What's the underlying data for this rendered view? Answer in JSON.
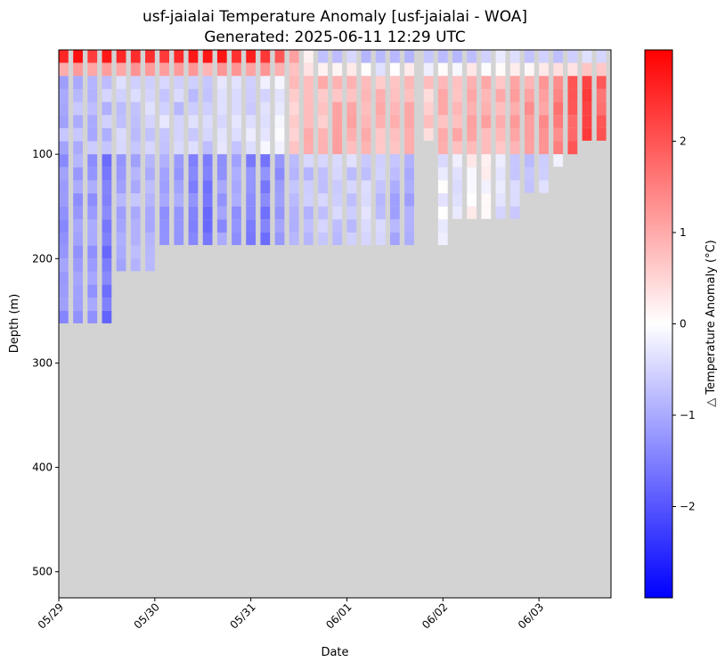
{
  "chart_data": {
    "type": "heatmap",
    "title": "usf-jaialai Temperature Anomaly [usf-jaialai - WOA]",
    "subtitle": "Generated: 2025-06-11 12:29 UTC",
    "xlabel": "Date",
    "ylabel": "Depth (m)",
    "colorbar_label": "△ Temperature Anomaly (°C)",
    "x_ticks": [
      "05/29",
      "05/30",
      "05/31",
      "06/01",
      "06/02",
      "06/03"
    ],
    "x_range_days": [
      0,
      5.75
    ],
    "y_ticks": [
      100,
      200,
      300,
      400,
      500
    ],
    "y_range_m": [
      0,
      525
    ],
    "y_inverted": true,
    "colorbar_ticks": [
      -2,
      -1,
      0,
      1,
      2
    ],
    "colorbar_range": [
      -3,
      3
    ],
    "colormap": "bwr",
    "colormap_colors": [
      "#0000ff",
      "#ffffff",
      "#ff0000"
    ],
    "nodata_color": "#d3d3d3",
    "depth_bin_m": 12.5,
    "column_width_days": 0.1,
    "profile_times_days": [
      0.0,
      0.15,
      0.3,
      0.45,
      0.6,
      0.75,
      0.9,
      1.05,
      1.2,
      1.35,
      1.5,
      1.65,
      1.8,
      1.95,
      2.1,
      2.25,
      2.4,
      2.55,
      2.7,
      2.85,
      3.0,
      3.15,
      3.3,
      3.45,
      3.6,
      3.8,
      3.95,
      4.1,
      4.25,
      4.4,
      4.55,
      4.7,
      4.85,
      5.0,
      5.15,
      5.3,
      5.45,
      5.6
    ],
    "profile_max_depth_m": [
      262,
      262,
      262,
      262,
      212,
      212,
      212,
      187,
      187,
      187,
      187,
      187,
      187,
      187,
      187,
      187,
      187,
      187,
      187,
      187,
      187,
      187,
      187,
      187,
      187,
      87,
      187,
      162,
      162,
      162,
      162,
      162,
      137,
      137,
      112,
      100,
      87,
      87
    ],
    "surface_anomaly_c": [
      2.8,
      2.6,
      2.5,
      2.7,
      2.6,
      2.5,
      2.4,
      2.5,
      2.6,
      2.7,
      2.5,
      2.6,
      2.6,
      2.4,
      2.2,
      2.0,
      0.9,
      0.2,
      -0.8,
      -0.7,
      -0.6,
      -0.9,
      -0.9,
      -0.8,
      -0.7,
      -0.6,
      -0.8,
      -0.6,
      -0.6,
      -0.5,
      -0.5,
      -0.5,
      -0.6,
      -0.5,
      -0.6,
      -0.6,
      -0.6,
      -0.7
    ],
    "thermocline_anomaly_c": [
      -0.9,
      -0.8,
      -0.8,
      -0.7,
      -0.6,
      -0.6,
      -0.6,
      -0.5,
      -0.6,
      -0.6,
      -0.6,
      -0.5,
      -0.5,
      -0.4,
      -0.3,
      -0.2,
      0.6,
      0.8,
      0.8,
      0.9,
      0.9,
      0.8,
      0.8,
      0.9,
      0.9,
      0.6,
      0.8,
      0.9,
      0.9,
      0.9,
      0.9,
      1.0,
      1.1,
      1.3,
      1.5,
      1.9,
      2.1,
      1.8
    ],
    "deep_anomaly_c": [
      -1.3,
      -1.1,
      -1.2,
      -1.6,
      -1.0,
      -0.9,
      -0.9,
      -1.1,
      -1.2,
      -1.3,
      -1.6,
      -1.2,
      -1.1,
      -1.4,
      -1.5,
      -1.3,
      -0.8,
      -0.7,
      -0.6,
      -0.6,
      -0.6,
      -0.5,
      -0.6,
      -0.9,
      -1.0,
      0.0,
      -0.2,
      -0.4,
      0.1,
      0.0,
      -0.3,
      -0.6,
      -0.8,
      -0.5,
      -0.3,
      0.0,
      0.4,
      0.3
    ]
  }
}
